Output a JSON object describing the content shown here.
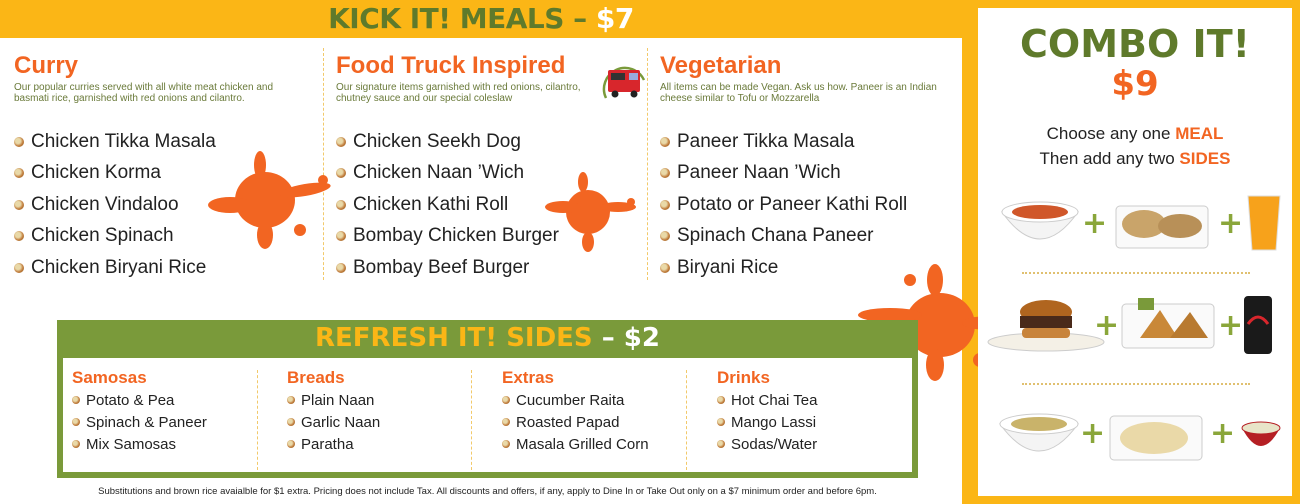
{
  "meals": {
    "title": "KICK IT! MEALS",
    "dash": "–",
    "price": "$7",
    "columns": [
      {
        "heading": "Curry",
        "description": "Our popular curries served with all white meat chicken and basmati rice, garnished with red onions and cilantro.",
        "items": [
          "Chicken Tikka Masala",
          "Chicken Korma",
          "Chicken Vindaloo",
          "Chicken Spinach",
          "Chicken Biryani Rice"
        ]
      },
      {
        "heading": "Food Truck Inspired",
        "description": "Our signature items garnished with red onions, cilantro, chutney sauce and our special coleslaw",
        "items": [
          "Chicken Seekh Dog",
          "Chicken Naan ’Wich",
          "Chicken Kathi Roll",
          "Bombay Chicken Burger",
          "Bombay Beef Burger"
        ]
      },
      {
        "heading": "Vegetarian",
        "description": "All items can be made Vegan. Ask us how. Paneer is an Indian cheese similar to Tofu or Mozzarella",
        "items": [
          "Paneer Tikka Masala",
          "Paneer Naan ’Wich",
          "Potato or Paneer Kathi Roll",
          "Spinach Chana Paneer",
          "Biryani Rice"
        ]
      }
    ]
  },
  "sides": {
    "title": "REFRESH IT! SIDES",
    "dash": "–",
    "price": "$2",
    "columns": [
      {
        "heading": "Samosas",
        "items": [
          "Potato & Pea",
          "Spinach & Paneer",
          "Mix Samosas"
        ]
      },
      {
        "heading": "Breads",
        "items": [
          "Plain Naan",
          "Garlic Naan",
          "Paratha"
        ]
      },
      {
        "heading": "Extras",
        "items": [
          "Cucumber Raita",
          "Roasted Papad",
          "Masala Grilled Corn"
        ]
      },
      {
        "heading": "Drinks",
        "items": [
          "Hot Chai Tea",
          "Mango Lassi",
          "Sodas/Water"
        ]
      }
    ]
  },
  "combo": {
    "title": "COMBO IT!",
    "price": "$9",
    "line1": "Choose any one",
    "line1_em": "MEAL",
    "line2": "Then add any two",
    "line2_em": "SIDES",
    "plus": "+"
  },
  "footer": "Substitutions and brown rice avaialble for $1 extra. Pricing does not include Tax. All discounts and offers, if any, apply to Dine In or Take Out only on a $7 minimum order and before 6pm.",
  "colors": {
    "yellow": "#fbb616",
    "green": "#5f7a2b",
    "orange": "#f26522",
    "sides_green": "#7a9a3a"
  }
}
